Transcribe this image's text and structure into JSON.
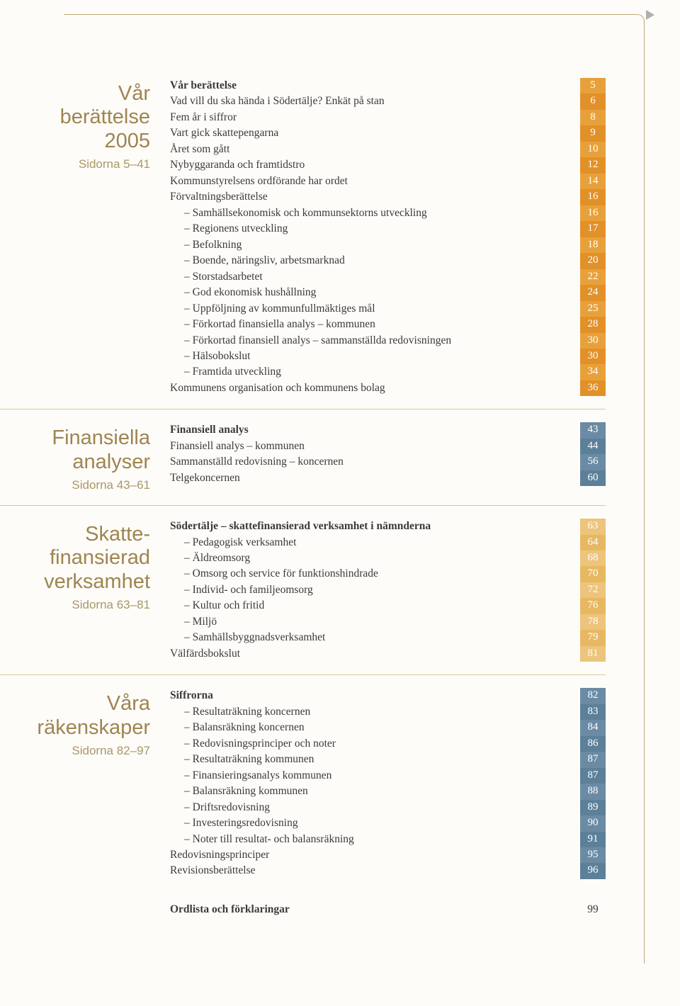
{
  "sections": [
    {
      "title_lines": [
        "Vår",
        "berättelse",
        "2005"
      ],
      "subtitle": "Sidorna 5–41",
      "title_color": "#9e8550",
      "strip_colors": [
        "#e8a13a",
        "#e29028"
      ],
      "text_color": "#ffffff",
      "rows": [
        {
          "label": "Vår berättelse",
          "page": "5",
          "bold": true,
          "indent": false
        },
        {
          "label": "Vad vill du ska hända i Södertälje? Enkät på stan",
          "page": "6",
          "bold": false,
          "indent": false
        },
        {
          "label": "Fem år i siffror",
          "page": "8",
          "bold": false,
          "indent": false
        },
        {
          "label": "Vart gick skattepengarna",
          "page": "9",
          "bold": false,
          "indent": false
        },
        {
          "label": "Året som gått",
          "page": "10",
          "bold": false,
          "indent": false
        },
        {
          "label": "Nybyggaranda och framtidstro",
          "page": "12",
          "bold": false,
          "indent": false
        },
        {
          "label": "Kommunstyrelsens ordförande har ordet",
          "page": "14",
          "bold": false,
          "indent": false
        },
        {
          "label": "Förvaltningsberättelse",
          "page": "16",
          "bold": false,
          "indent": false
        },
        {
          "label": "– Samhällsekonomisk och kommunsektorns utveckling",
          "page": "16",
          "bold": false,
          "indent": true
        },
        {
          "label": "– Regionens utveckling",
          "page": "17",
          "bold": false,
          "indent": true
        },
        {
          "label": "– Befolkning",
          "page": "18",
          "bold": false,
          "indent": true
        },
        {
          "label": "– Boende, näringsliv, arbetsmarknad",
          "page": "20",
          "bold": false,
          "indent": true
        },
        {
          "label": "– Storstadsarbetet",
          "page": "22",
          "bold": false,
          "indent": true
        },
        {
          "label": "– God ekonomisk hushållning",
          "page": "24",
          "bold": false,
          "indent": true
        },
        {
          "label": "– Uppföljning av kommunfullmäktiges mål",
          "page": "25",
          "bold": false,
          "indent": true
        },
        {
          "label": "– Förkortad finansiella analys – kommunen",
          "page": "28",
          "bold": false,
          "indent": true
        },
        {
          "label": "– Förkortad finansiell analys – sammanställda redovisningen",
          "page": "30",
          "bold": false,
          "indent": true
        },
        {
          "label": "– Hälsobokslut",
          "page": "30",
          "bold": false,
          "indent": true
        },
        {
          "label": "– Framtida utveckling",
          "page": "34",
          "bold": false,
          "indent": true
        },
        {
          "label": "Kommunens organisation och kommunens bolag",
          "page": "36",
          "bold": false,
          "indent": false
        }
      ]
    },
    {
      "title_lines": [
        "Finansiella",
        "analyser"
      ],
      "subtitle": "Sidorna 43–61",
      "title_color": "#9e8550",
      "strip_colors": [
        "#6a8ba3",
        "#5d8099"
      ],
      "text_color": "#ffffff",
      "rows": [
        {
          "label": "Finansiell analys",
          "page": "43",
          "bold": true,
          "indent": false
        },
        {
          "label": "Finansiell analys – kommunen",
          "page": "44",
          "bold": false,
          "indent": false
        },
        {
          "label": "Sammanställd redovisning – koncernen",
          "page": "56",
          "bold": false,
          "indent": false
        },
        {
          "label": "Telgekoncernen",
          "page": "60",
          "bold": false,
          "indent": false
        }
      ]
    },
    {
      "title_lines": [
        "Skatte-",
        "finansierad",
        "verksamhet"
      ],
      "subtitle": "Sidorna 63–81",
      "title_color": "#9e8550",
      "strip_colors": [
        "#edc47b",
        "#e7b862"
      ],
      "text_color": "#ffffff",
      "rows": [
        {
          "label": "Södertälje – skattefinansierad verksamhet i nämnderna",
          "page": "63",
          "bold": true,
          "indent": false
        },
        {
          "label": "– Pedagogisk verksamhet",
          "page": "64",
          "bold": false,
          "indent": true
        },
        {
          "label": "– Äldreomsorg",
          "page": "68",
          "bold": false,
          "indent": true
        },
        {
          "label": "– Omsorg och service för funktionshindrade",
          "page": "70",
          "bold": false,
          "indent": true
        },
        {
          "label": "– Individ- och familjeomsorg",
          "page": "72",
          "bold": false,
          "indent": true
        },
        {
          "label": "– Kultur och fritid",
          "page": "76",
          "bold": false,
          "indent": true
        },
        {
          "label": "– Miljö",
          "page": "78",
          "bold": false,
          "indent": true
        },
        {
          "label": "– Samhällsbyggnadsverksamhet",
          "page": "79",
          "bold": false,
          "indent": true
        },
        {
          "label": "Välfärdsbokslut",
          "page": "81",
          "bold": false,
          "indent": false
        }
      ]
    },
    {
      "title_lines": [
        "Våra",
        "räkenskaper"
      ],
      "subtitle": "Sidorna 82–97",
      "title_color": "#9e8550",
      "strip_colors": [
        "#6a8ba3",
        "#5d8099"
      ],
      "text_color": "#ffffff",
      "rows": [
        {
          "label": "Siffrorna",
          "page": "82",
          "bold": true,
          "indent": false
        },
        {
          "label": "– Resultaträkning koncernen",
          "page": "83",
          "bold": false,
          "indent": true
        },
        {
          "label": "– Balansräkning koncernen",
          "page": "84",
          "bold": false,
          "indent": true
        },
        {
          "label": "– Redovisningsprinciper och noter",
          "page": "86",
          "bold": false,
          "indent": true
        },
        {
          "label": "– Resultaträkning kommunen",
          "page": "87",
          "bold": false,
          "indent": true
        },
        {
          "label": "– Finansieringsanalys kommunen",
          "page": "87",
          "bold": false,
          "indent": true
        },
        {
          "label": "– Balansräkning kommunen",
          "page": "88",
          "bold": false,
          "indent": true
        },
        {
          "label": "– Driftsredovisning",
          "page": "89",
          "bold": false,
          "indent": true
        },
        {
          "label": "– Investeringsredovisning",
          "page": "90",
          "bold": false,
          "indent": true
        },
        {
          "label": "– Noter till resultat- och balansräkning",
          "page": "91",
          "bold": false,
          "indent": true
        },
        {
          "label": "Redovisningsprinciper",
          "page": "95",
          "bold": false,
          "indent": false
        },
        {
          "label": "Revisionsberättelse",
          "page": "96",
          "bold": false,
          "indent": false
        }
      ]
    }
  ],
  "footer": {
    "label": "Ordlista och förklaringar",
    "page": "99"
  }
}
